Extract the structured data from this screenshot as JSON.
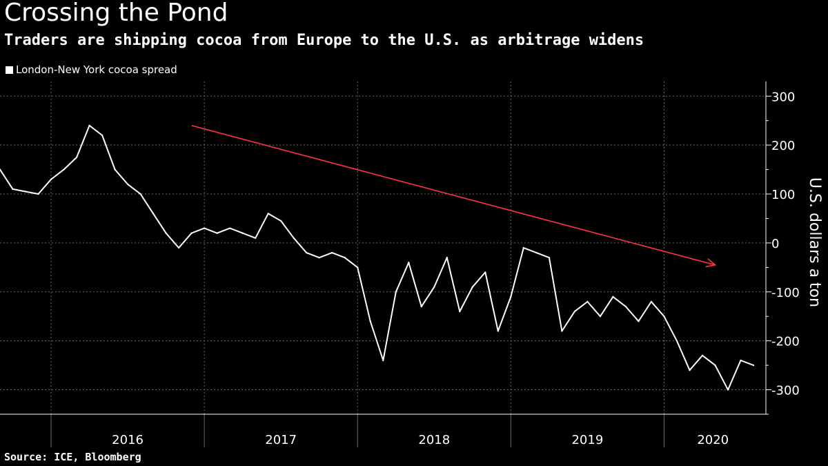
{
  "title": "Crossing the Pond",
  "subtitle": "Traders are shipping cocoa from Europe to the U.S. as arbitrage widens",
  "source": "Source: ICE, Bloomberg",
  "chart_data": {
    "type": "line",
    "ylabel": "U.S. dollars a ton",
    "ylim": [
      -350,
      330
    ],
    "y_ticks": [
      300,
      200,
      100,
      0,
      -100,
      -200,
      -300
    ],
    "y_tick_labels": [
      "300",
      "200",
      "100",
      "0",
      "-100",
      "-200",
      "-300"
    ],
    "x_categories": [
      "2016",
      "2017",
      "2018",
      "2019",
      "2020"
    ],
    "x_range": [
      "2015-09",
      "2020-08"
    ],
    "grid": true,
    "legend": "top-left",
    "line_color": "#ffffff",
    "annotation_color": "#ff3344",
    "series": [
      {
        "name": "London-New York cocoa spread",
        "x": [
          "2015-09",
          "2015-10",
          "2015-11",
          "2015-12",
          "2016-01",
          "2016-02",
          "2016-03",
          "2016-04",
          "2016-05",
          "2016-06",
          "2016-07",
          "2016-08",
          "2016-09",
          "2016-10",
          "2016-11",
          "2016-12",
          "2017-01",
          "2017-02",
          "2017-03",
          "2017-04",
          "2017-05",
          "2017-06",
          "2017-07",
          "2017-08",
          "2017-09",
          "2017-10",
          "2017-11",
          "2017-12",
          "2018-01",
          "2018-02",
          "2018-03",
          "2018-04",
          "2018-05",
          "2018-06",
          "2018-07",
          "2018-08",
          "2018-09",
          "2018-10",
          "2018-11",
          "2018-12",
          "2019-01",
          "2019-02",
          "2019-03",
          "2019-04",
          "2019-05",
          "2019-06",
          "2019-07",
          "2019-08",
          "2019-09",
          "2019-10",
          "2019-11",
          "2019-12",
          "2020-01",
          "2020-02",
          "2020-03",
          "2020-04",
          "2020-05",
          "2020-06",
          "2020-07",
          "2020-08"
        ],
        "y": [
          150,
          110,
          105,
          100,
          130,
          150,
          175,
          240,
          220,
          150,
          120,
          100,
          60,
          20,
          -10,
          20,
          30,
          20,
          30,
          20,
          10,
          60,
          45,
          10,
          -20,
          -30,
          -20,
          -30,
          -50,
          -160,
          -240,
          -100,
          -40,
          -130,
          -90,
          -30,
          -140,
          -90,
          -60,
          -180,
          -110,
          -10,
          -20,
          -30,
          -180,
          -140,
          -120,
          -150,
          -110,
          -130,
          -160,
          -120,
          -150,
          -200,
          -260,
          -230,
          -250,
          -300,
          -240,
          -250
        ]
      }
    ],
    "annotations": [
      {
        "type": "arrow",
        "from": [
          "2016-12",
          240
        ],
        "to": [
          "2020-05",
          -45
        ]
      }
    ]
  }
}
